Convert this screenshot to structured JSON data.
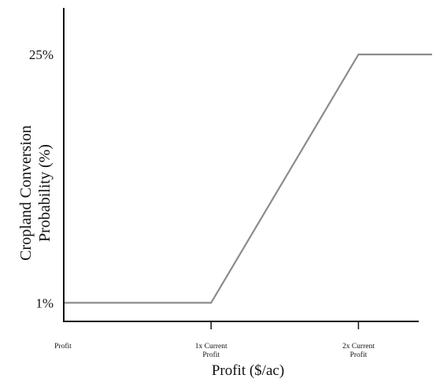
{
  "chart_data": {
    "type": "line",
    "title": "",
    "xlabel": "Profit ($/ac)",
    "ylabel_lines": [
      "Cropland Conversion",
      "Probability (%)"
    ],
    "x_ticks": [
      {
        "value": 0,
        "label_lines": [
          "Profit"
        ]
      },
      {
        "value": 1,
        "label_lines": [
          "1x Current",
          "Profit"
        ]
      },
      {
        "value": 2,
        "label_lines": [
          "2x Current",
          "Profit"
        ]
      }
    ],
    "y_ticks": [
      {
        "value": 1,
        "label": "1%"
      },
      {
        "value": 25,
        "label": "25%"
      }
    ],
    "xlim": [
      0,
      2.5
    ],
    "ylim": [
      -0.8,
      29.5
    ],
    "grid": false,
    "series": [
      {
        "color": "#8c8c8c",
        "points": [
          {
            "x": 0,
            "y": 1
          },
          {
            "x": 1,
            "y": 1
          },
          {
            "x": 2,
            "y": 25
          },
          {
            "x": 2.5,
            "y": 25
          }
        ]
      }
    ],
    "axis_color": "#111111"
  }
}
